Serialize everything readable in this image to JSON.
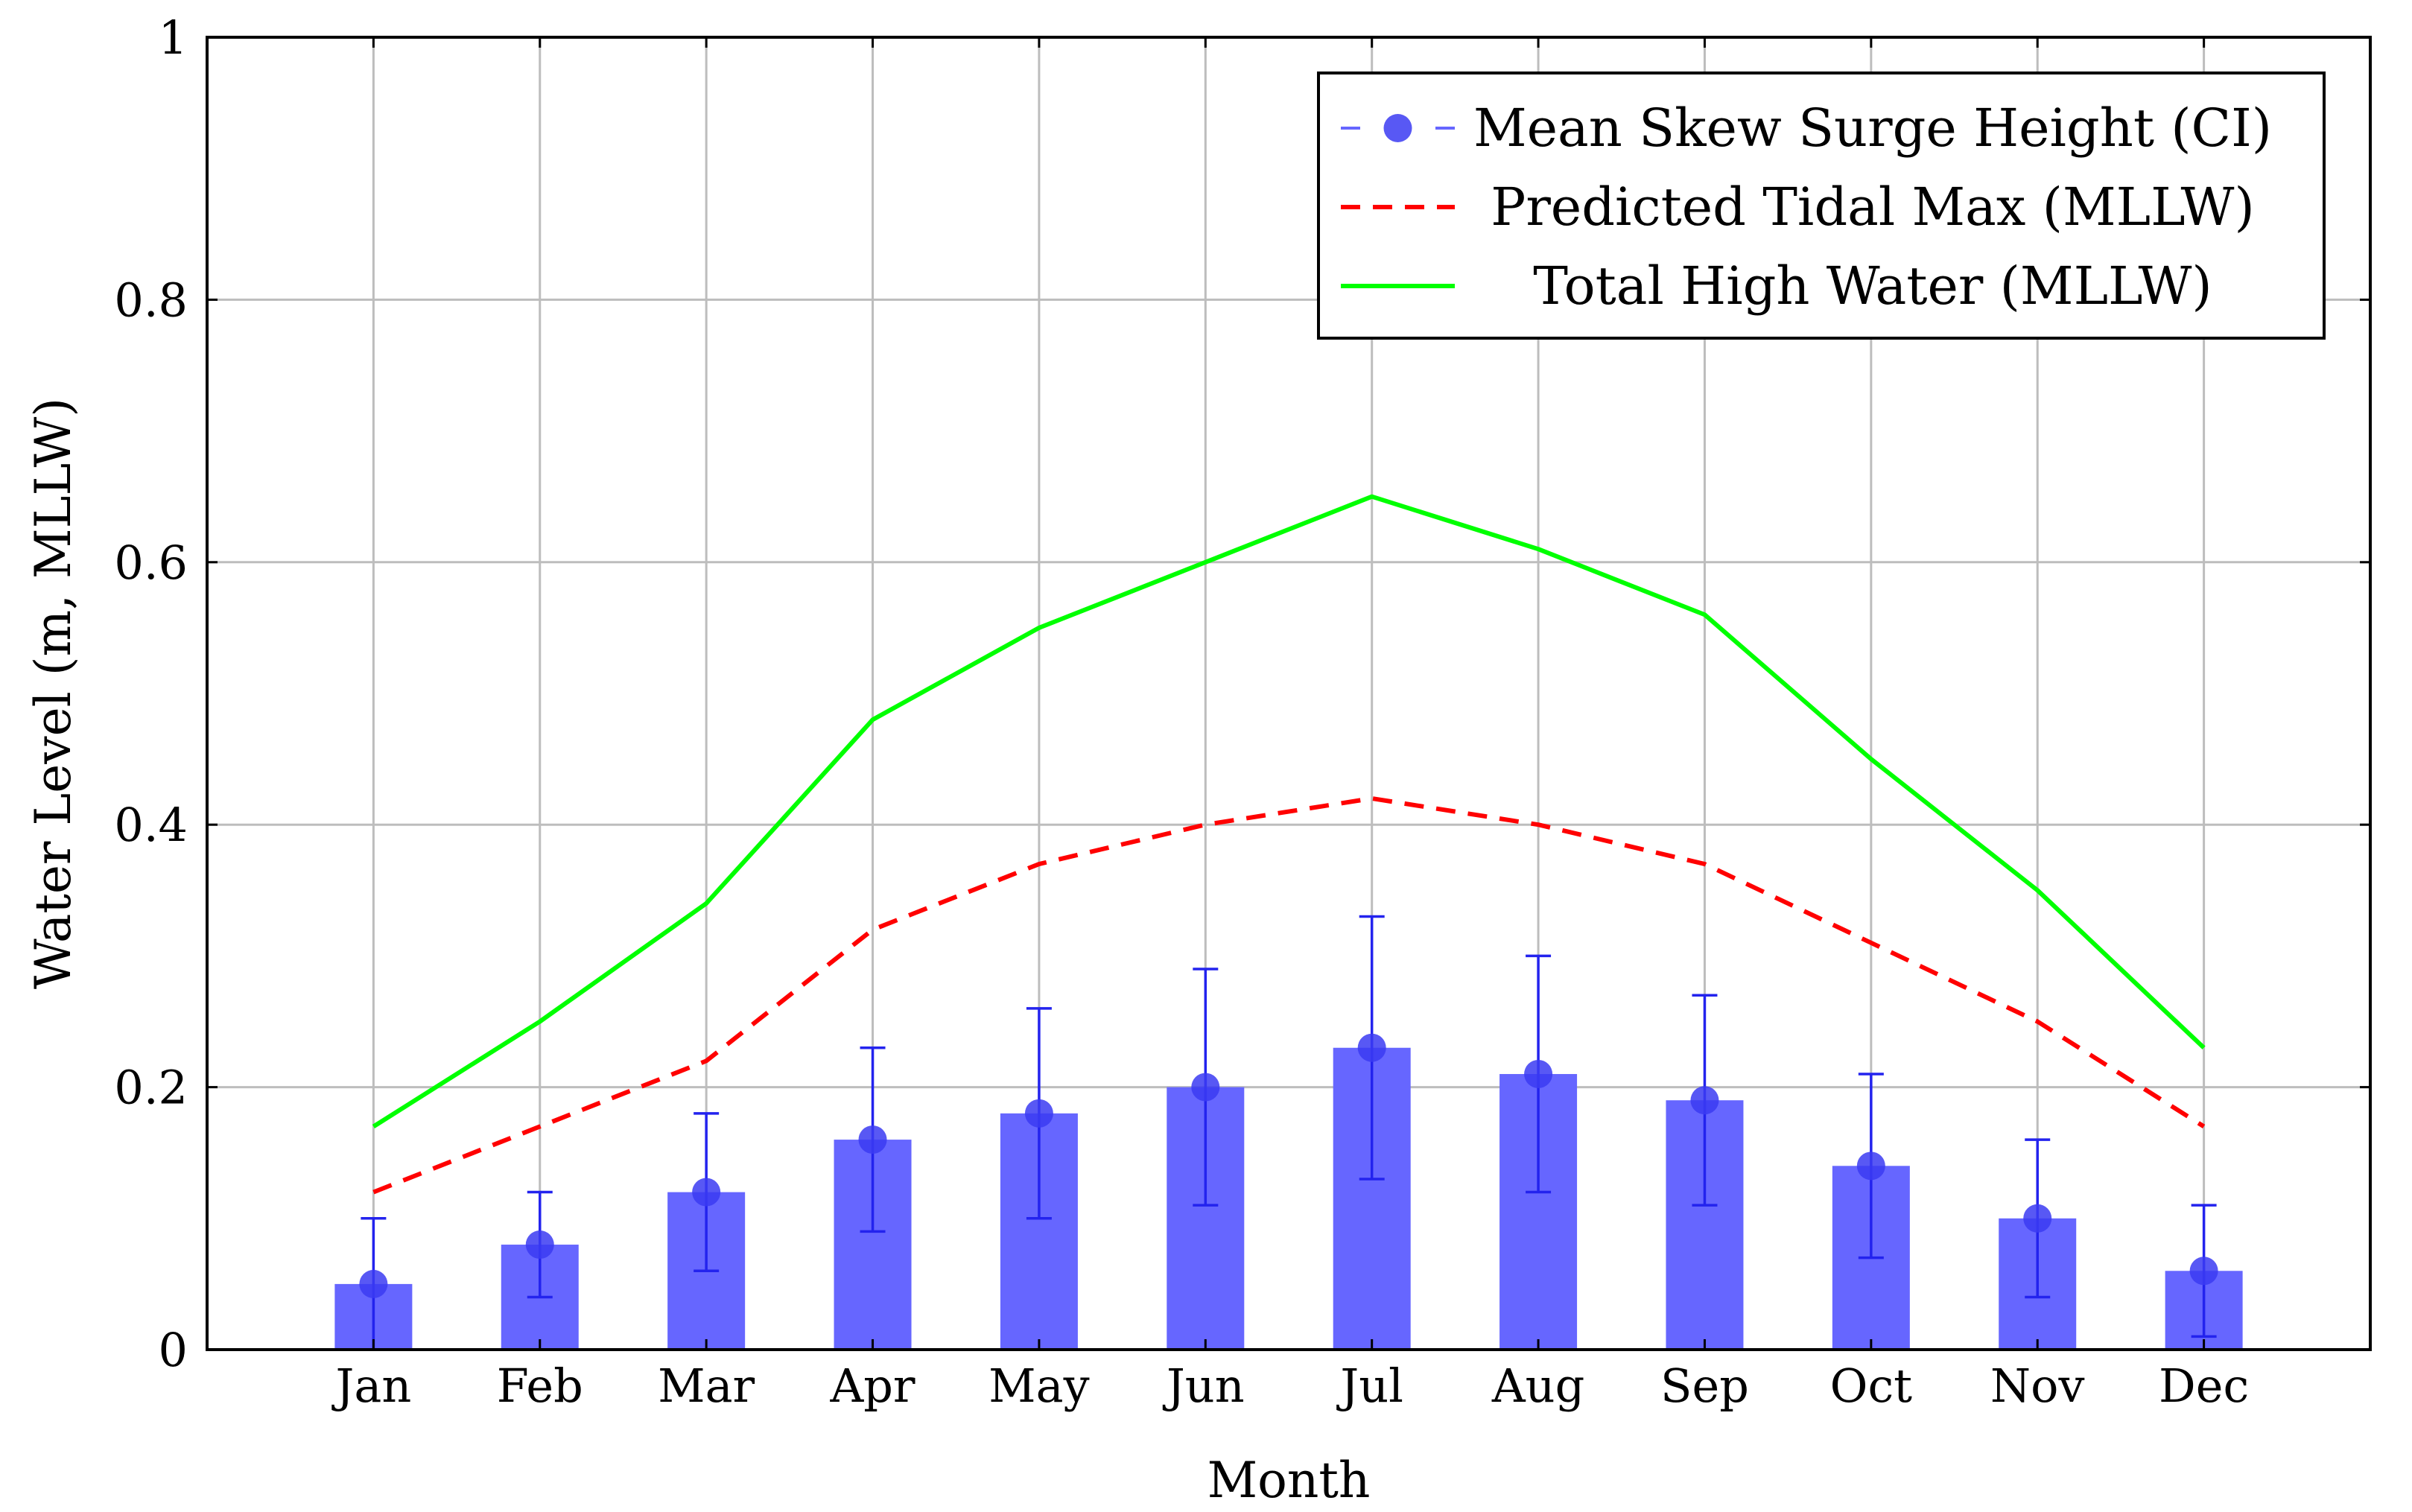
{
  "chart_data": {
    "type": "bar",
    "title": "",
    "xlabel": "Month",
    "ylabel": "Water Level (m, MLLW)",
    "ylim": [
      0,
      1
    ],
    "yticks": [
      0,
      0.2,
      0.4,
      0.6,
      0.8,
      1
    ],
    "ytick_labels": [
      "0",
      "0.2",
      "0.4",
      "0.6",
      "0.8",
      "1"
    ],
    "grid": true,
    "legend_position": "top-right",
    "categories": [
      "Jan",
      "Feb",
      "Mar",
      "Apr",
      "May",
      "Jun",
      "Jul",
      "Aug",
      "Sep",
      "Oct",
      "Nov",
      "Dec"
    ],
    "series": [
      {
        "name": "Mean Skew Surge Height (CI)",
        "type": "bar-errorbar",
        "color": "#6666ff",
        "values": [
          0.05,
          0.08,
          0.12,
          0.16,
          0.18,
          0.2,
          0.23,
          0.21,
          0.19,
          0.14,
          0.1,
          0.06
        ],
        "ci_low": [
          0.0,
          0.04,
          0.06,
          0.09,
          0.1,
          0.11,
          0.13,
          0.12,
          0.11,
          0.07,
          0.04,
          0.01
        ],
        "ci_high": [
          0.1,
          0.12,
          0.18,
          0.23,
          0.26,
          0.29,
          0.33,
          0.3,
          0.27,
          0.21,
          0.16,
          0.11
        ]
      },
      {
        "name": "Predicted Tidal Max (MLLW)",
        "type": "line-dashed",
        "color": "#ff0000",
        "values": [
          0.12,
          0.17,
          0.22,
          0.32,
          0.37,
          0.4,
          0.42,
          0.4,
          0.37,
          0.31,
          0.25,
          0.17
        ]
      },
      {
        "name": "Total High Water (MLLW)",
        "type": "line",
        "color": "#00ff00",
        "values": [
          0.17,
          0.25,
          0.34,
          0.48,
          0.55,
          0.6,
          0.65,
          0.61,
          0.56,
          0.45,
          0.35,
          0.23
        ]
      }
    ]
  }
}
